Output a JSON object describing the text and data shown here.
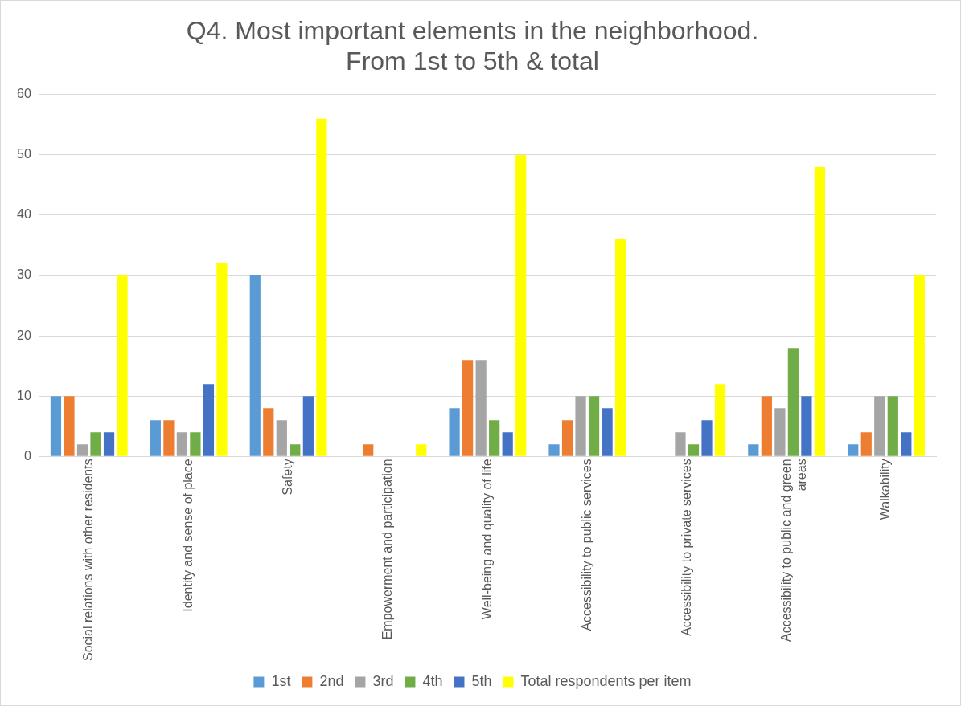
{
  "chart_data": {
    "type": "bar",
    "title": "Q4. Most important elements in the neighborhood. From 1st to 5th & total",
    "categories": [
      "Social relations with other residents",
      "Identity and sense of place",
      "Safety",
      "Empowerment and participation",
      "Well-being and quality of life",
      "Accessibility to public services",
      "Accessibility to private services",
      "Accessibility to public and green areas",
      "Walkability"
    ],
    "series": [
      {
        "name": "1st",
        "color": "#5b9bd5",
        "values": [
          10,
          6,
          30,
          0,
          8,
          2,
          0,
          2,
          2
        ]
      },
      {
        "name": "2nd",
        "color": "#ed7d31",
        "values": [
          10,
          6,
          8,
          2,
          16,
          6,
          0,
          10,
          4
        ]
      },
      {
        "name": "3rd",
        "color": "#a5a5a5",
        "values": [
          2,
          4,
          6,
          0,
          16,
          10,
          4,
          8,
          10
        ]
      },
      {
        "name": "4th",
        "color": "#70ad47",
        "values": [
          4,
          4,
          2,
          0,
          6,
          10,
          2,
          18,
          10
        ]
      },
      {
        "name": "5th",
        "color": "#4472c4",
        "values": [
          4,
          12,
          10,
          0,
          4,
          8,
          6,
          10,
          4
        ]
      },
      {
        "name": "Total respondents per item",
        "color": "#ffff00",
        "values": [
          30,
          32,
          56,
          2,
          50,
          36,
          12,
          48,
          30
        ]
      }
    ],
    "ylim": [
      0,
      60
    ],
    "yticks": [
      0,
      10,
      20,
      30,
      40,
      50,
      60
    ],
    "grid": "y",
    "legend": "bottom"
  }
}
